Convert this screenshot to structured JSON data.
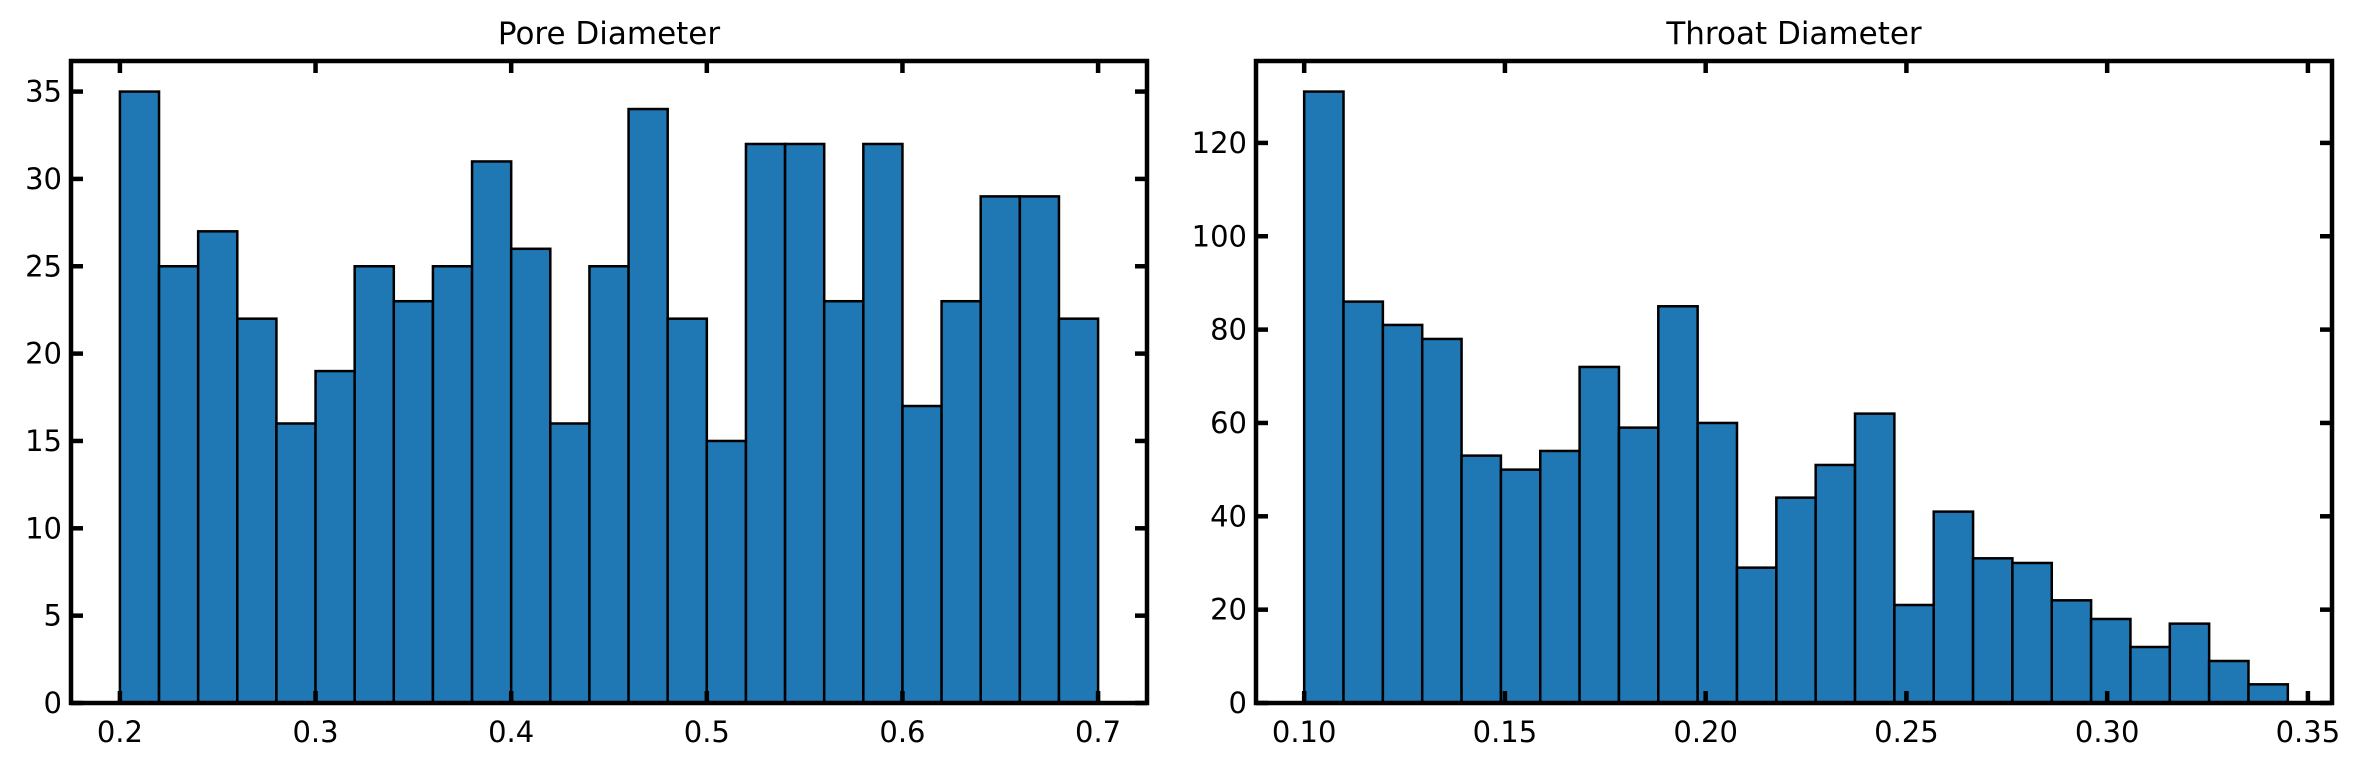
{
  "colors": {
    "bar_fill": "#1f77b4",
    "bar_edge": "#000000",
    "axes": "#000000"
  },
  "chart_data": [
    {
      "type": "bar",
      "title": "Pore Diameter",
      "xlabel": "",
      "ylabel": "",
      "xlim": [
        0.175,
        0.725
      ],
      "ylim": [
        0,
        36.75
      ],
      "x_ticks": [
        0.2,
        0.3,
        0.4,
        0.5,
        0.6,
        0.7
      ],
      "x_tick_labels": [
        "0.2",
        "0.3",
        "0.4",
        "0.5",
        "0.6",
        "0.7"
      ],
      "y_ticks": [
        0,
        5,
        10,
        15,
        20,
        25,
        30,
        35
      ],
      "y_tick_labels": [
        "0",
        "5",
        "10",
        "15",
        "20",
        "25",
        "30",
        "35"
      ],
      "grid": false,
      "bin_edges": [
        0.2,
        0.22,
        0.24,
        0.26,
        0.28,
        0.3,
        0.32,
        0.34,
        0.36,
        0.38,
        0.4,
        0.42,
        0.44,
        0.46,
        0.48,
        0.5,
        0.52,
        0.54,
        0.56,
        0.58,
        0.6,
        0.62,
        0.64,
        0.66,
        0.68,
        0.7
      ],
      "values": [
        35,
        25,
        27,
        22,
        16,
        19,
        25,
        23,
        25,
        31,
        26,
        16,
        25,
        34,
        22,
        15,
        32,
        32,
        23,
        32,
        17,
        23,
        29,
        29,
        22
      ]
    },
    {
      "type": "bar",
      "title": "Throat Diameter",
      "xlabel": "",
      "ylabel": "",
      "xlim": [
        0.088,
        0.356
      ],
      "ylim": [
        0,
        137.55
      ],
      "x_ticks": [
        0.1,
        0.15,
        0.2,
        0.25,
        0.3,
        0.35
      ],
      "x_tick_labels": [
        "0.10",
        "0.15",
        "0.20",
        "0.25",
        "0.30",
        "0.35"
      ],
      "y_ticks": [
        0,
        20,
        40,
        60,
        80,
        100,
        120
      ],
      "y_tick_labels": [
        "0",
        "20",
        "40",
        "60",
        "80",
        "100",
        "120"
      ],
      "grid": false,
      "bin_edges": [
        0.1,
        0.1098,
        0.1196,
        0.1294,
        0.1392,
        0.149,
        0.1588,
        0.1686,
        0.1784,
        0.1882,
        0.198,
        0.2078,
        0.2176,
        0.2274,
        0.2372,
        0.247,
        0.2568,
        0.2666,
        0.2764,
        0.2862,
        0.296,
        0.3058,
        0.3156,
        0.3254,
        0.3352,
        0.345
      ],
      "values": [
        131,
        86,
        81,
        78,
        53,
        50,
        54,
        72,
        59,
        85,
        60,
        29,
        44,
        51,
        62,
        21,
        41,
        31,
        30,
        22,
        18,
        12,
        17,
        9,
        4
      ]
    }
  ]
}
